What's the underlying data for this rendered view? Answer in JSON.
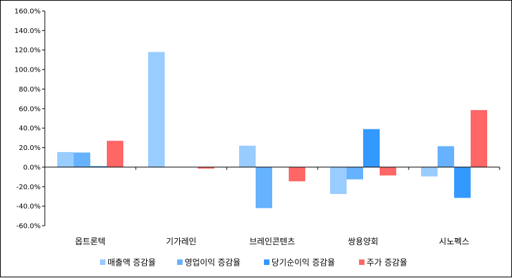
{
  "chart_data": {
    "type": "bar",
    "categories": [
      "옵트론텍",
      "기가레인",
      "브레인콘텐츠",
      "쌍용양회",
      "시노펙스"
    ],
    "series": [
      {
        "name": "매출액 증감율",
        "color": "#99CCFF",
        "values": [
          15.5,
          118.0,
          22.0,
          -27.5,
          -9.5
        ]
      },
      {
        "name": "영업이익 증감율",
        "color": "#66B2FF",
        "values": [
          15.0,
          0,
          -42.0,
          -12.5,
          21.5
        ]
      },
      {
        "name": "당기순이익 증감율",
        "color": "#3399FF",
        "values": [
          1.0,
          0,
          0,
          39.0,
          -31.5
        ]
      },
      {
        "name": "주가 증감율",
        "color": "#FF6666",
        "values": [
          27.0,
          -1.5,
          -14.5,
          -8.5,
          58.5
        ]
      }
    ],
    "ylim": [
      -60,
      160
    ],
    "ytick_step": 20,
    "ytick_labels": [
      "-60.0%",
      "-40.0%",
      "-20.0%",
      "0.0%",
      "20.0%",
      "40.0%",
      "60.0%",
      "80.0%",
      "100.0%",
      "120.0%",
      "140.0%",
      "160.0%"
    ],
    "title": "",
    "xlabel": "",
    "ylabel": "",
    "grid": false,
    "legend_position": "bottom"
  }
}
